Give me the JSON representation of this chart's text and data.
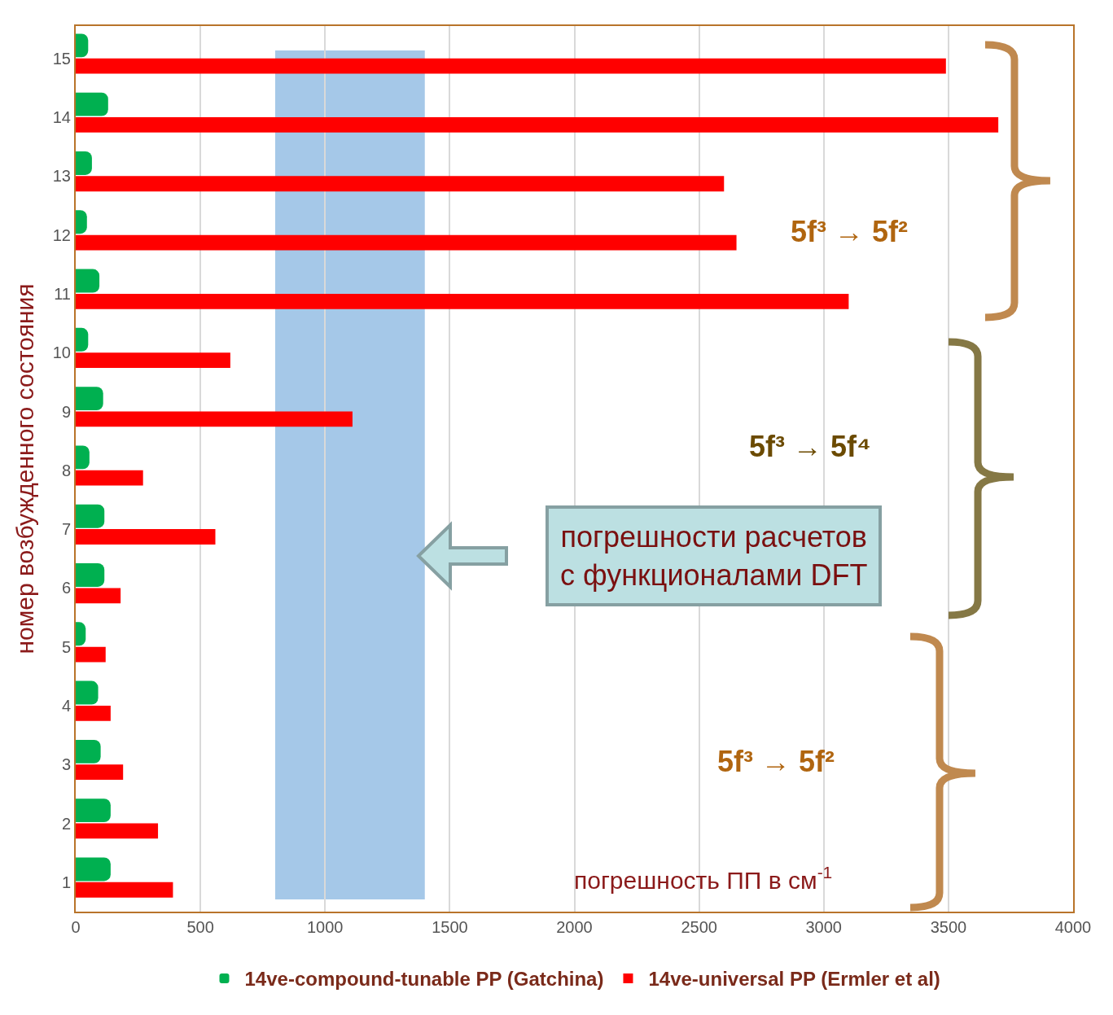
{
  "chart_data": {
    "type": "bar",
    "orientation": "horizontal",
    "ylabel": "номер возбужденного состояния",
    "xlabel": "погрешность ПП в см$^{-1}$",
    "categories": [
      "15",
      "14",
      "13",
      "12",
      "11",
      "10",
      "9",
      "8",
      "7",
      "6",
      "5",
      "4",
      "3",
      "2",
      "1"
    ],
    "series": [
      {
        "name": "14ve-compound-tunable PP (Gatchina)",
        "color": "#00b050",
        "values": [
          50,
          130,
          65,
          45,
          95,
          50,
          110,
          55,
          115,
          115,
          40,
          90,
          100,
          140,
          140
        ]
      },
      {
        "name": "14ve-universal PP (Ermler et al)",
        "color": "#ff0000",
        "values": [
          3490,
          3700,
          2600,
          2650,
          3100,
          620,
          1110,
          270,
          560,
          180,
          120,
          140,
          190,
          330,
          390
        ]
      }
    ],
    "xlim": [
      0,
      4000
    ],
    "xticks": [
      0,
      500,
      1000,
      1500,
      2000,
      2500,
      3000,
      3500,
      4000
    ],
    "grid": "x",
    "legend": "bottom",
    "bands": [
      {
        "axis": "x",
        "from": 800,
        "to": 1400,
        "color": "#5b9bd5"
      }
    ],
    "annotations": [
      "погрешности расчетов с функционалами DFT",
      "5f³ → 5f²",
      "5f³ → 5f⁴",
      "5f³ → 5f²"
    ]
  }
}
